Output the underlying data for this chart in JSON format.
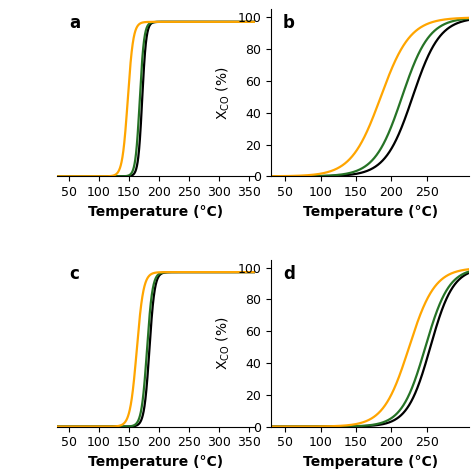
{
  "colors": {
    "orange": "#FFA500",
    "green": "#267326",
    "black": "#000000"
  },
  "panel_a": {
    "x_range": [
      30,
      360
    ],
    "y_range": [
      0,
      108
    ],
    "xlabel": "Temperature (°C)",
    "xticks": [
      50,
      100,
      150,
      200,
      250,
      300,
      350
    ],
    "show_yticks": false,
    "lines": {
      "orange": {
        "midpoint": 148,
        "steepness": 0.22
      },
      "green": {
        "midpoint": 168,
        "steepness": 0.28
      },
      "black": {
        "midpoint": 172,
        "steepness": 0.3
      }
    },
    "y_max": 100,
    "label": "a"
  },
  "panel_b": {
    "x_range": [
      30,
      310
    ],
    "y_range": [
      0,
      105
    ],
    "xlabel": "Temperature (°C)",
    "xticks": [
      50,
      100,
      150,
      200,
      250
    ],
    "show_yticks": true,
    "yticks": [
      0,
      20,
      40,
      60,
      80,
      100
    ],
    "lines": {
      "orange": {
        "midpoint": 185,
        "steepness": 0.048
      },
      "green": {
        "midpoint": 215,
        "steepness": 0.052
      },
      "black": {
        "midpoint": 230,
        "steepness": 0.052
      }
    },
    "y_max": 100,
    "label": "b"
  },
  "panel_c": {
    "x_range": [
      30,
      360
    ],
    "y_range": [
      0,
      108
    ],
    "xlabel": "Temperature (°C)",
    "xticks": [
      50,
      100,
      150,
      200,
      250,
      300,
      350
    ],
    "show_yticks": false,
    "lines": {
      "orange": {
        "midpoint": 163,
        "steepness": 0.18
      },
      "green": {
        "midpoint": 180,
        "steepness": 0.22
      },
      "black": {
        "midpoint": 184,
        "steepness": 0.23
      }
    },
    "y_max": 100,
    "label": "c"
  },
  "panel_d": {
    "x_range": [
      30,
      310
    ],
    "y_range": [
      0,
      105
    ],
    "xlabel": "Temperature (°C)",
    "xticks": [
      50,
      100,
      150,
      200,
      250
    ],
    "show_yticks": true,
    "yticks": [
      0,
      20,
      40,
      60,
      80,
      100
    ],
    "lines": {
      "orange": {
        "midpoint": 225,
        "steepness": 0.055
      },
      "green": {
        "midpoint": 248,
        "steepness": 0.06
      },
      "black": {
        "midpoint": 255,
        "steepness": 0.062
      }
    },
    "y_max": 100,
    "label": "d"
  },
  "xlabel_fontsize": 10,
  "ylabel_fontsize": 10,
  "tick_fontsize": 9,
  "panel_label_fontsize": 12,
  "linewidth": 1.6
}
